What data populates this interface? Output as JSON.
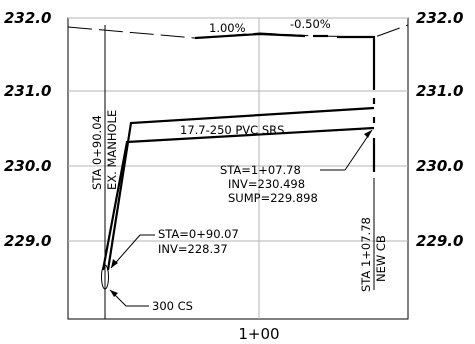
{
  "profile": {
    "y_labels_left": [
      "232.0",
      "231.0",
      "230.0",
      "229.0"
    ],
    "y_labels_right": [
      "232.0",
      "231.0",
      "230.0",
      "229.0"
    ],
    "x_label": "1+00",
    "grade_left": "1.00%",
    "grade_right": "-0.50%",
    "pipe_label": "17.7-250 PVC SRS",
    "manhole_sta": "STA 0+90.04",
    "manhole_name": "EX. MANHOLE",
    "cb_sta": "STA 1+07.78",
    "cb_name": "NEW CB",
    "cb_info": [
      "STA=1+07.78",
      "INV=230.498",
      "SUMP=229.898"
    ],
    "inlet_info": [
      "STA=0+90.07",
      "INV=228.37"
    ],
    "pipe_callout": "300 CS"
  },
  "colors": {
    "grid": "#b4b4b4",
    "ink": "#000000"
  }
}
